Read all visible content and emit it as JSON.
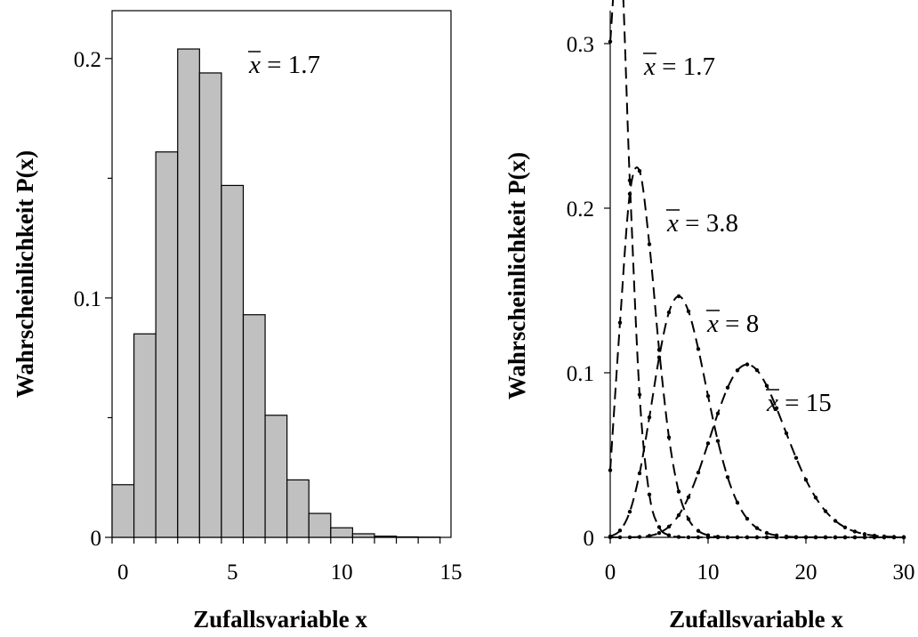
{
  "chart_data": [
    {
      "type": "bar",
      "xlabel": "Zufallsvariable x",
      "ylabel": "Wahrscheinlichkeit P(x)",
      "xlim": [
        -0.5,
        15
      ],
      "ylim": [
        0,
        0.22
      ],
      "xticks": [
        0,
        5,
        10,
        15
      ],
      "yticks": [
        0,
        0.1,
        0.2
      ],
      "tick_labels_y": [
        "0",
        "0.1",
        "0.2"
      ],
      "grid": false,
      "categories": [
        0,
        1,
        2,
        3,
        4,
        5,
        6,
        7,
        8,
        9,
        10,
        11,
        12,
        13,
        14
      ],
      "values": [
        0.022,
        0.085,
        0.161,
        0.204,
        0.194,
        0.147,
        0.093,
        0.051,
        0.024,
        0.01,
        0.004,
        0.0015,
        0.0005,
        0.0002,
        0.0001
      ],
      "annotation": {
        "var": "x",
        "text": " = 1.7"
      }
    },
    {
      "type": "line",
      "xlabel": "Zufallsvariable x",
      "ylabel": "Wahrscheinlichkeit P(x)",
      "xlim": [
        0,
        30
      ],
      "ylim": [
        0,
        0.32
      ],
      "xticks": [
        0,
        10,
        20,
        30
      ],
      "yticks": [
        0,
        0.1,
        0.2,
        0.3
      ],
      "tick_labels_y": [
        "0",
        "0.1",
        "0.2",
        "0.3"
      ],
      "grid": false,
      "series": [
        {
          "mean": 1.2,
          "annotation": {
            "var": "x",
            "text": " = 1.7"
          }
        },
        {
          "mean": 3.2,
          "annotation": {
            "var": "x",
            "text": " = 3.8"
          }
        },
        {
          "mean": 7.5,
          "annotation": {
            "var": "x",
            "text": " =  8"
          }
        },
        {
          "mean": 14.5,
          "annotation": {
            "var": "x",
            "text": " = 15"
          }
        }
      ]
    }
  ]
}
